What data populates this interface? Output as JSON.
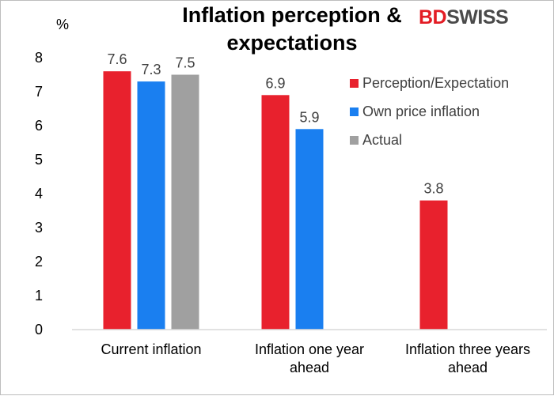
{
  "brand": {
    "part1": "BD",
    "part2": "SWISS",
    "color1": "#e31c24",
    "color2": "#4a4a4a"
  },
  "chart_data": {
    "type": "bar",
    "title": "Inflation perception & expectations",
    "title_lines": [
      "Inflation perception &",
      "expectations"
    ],
    "ylabel": "%",
    "xlabel": "",
    "ylim": [
      0,
      8
    ],
    "yticks": [
      0,
      1,
      2,
      3,
      4,
      5,
      6,
      7,
      8
    ],
    "categories": [
      "Current inflation",
      "Inflation one year ahead",
      "Inflation three years ahead"
    ],
    "category_lines": [
      [
        "Current inflation"
      ],
      [
        "Inflation one year",
        "ahead"
      ],
      [
        "Inflation three years",
        "ahead"
      ]
    ],
    "series": [
      {
        "name": "Perception/Expectation",
        "color": "#e8212d",
        "values": [
          7.6,
          6.9,
          3.8
        ]
      },
      {
        "name": "Own price inflation",
        "color": "#1a7ff0",
        "values": [
          7.3,
          5.9,
          null
        ]
      },
      {
        "name": "Actual",
        "color": "#a0a0a0",
        "values": [
          7.5,
          null,
          null
        ]
      }
    ],
    "data_labels": true,
    "grid": false,
    "legend_position": "right"
  }
}
